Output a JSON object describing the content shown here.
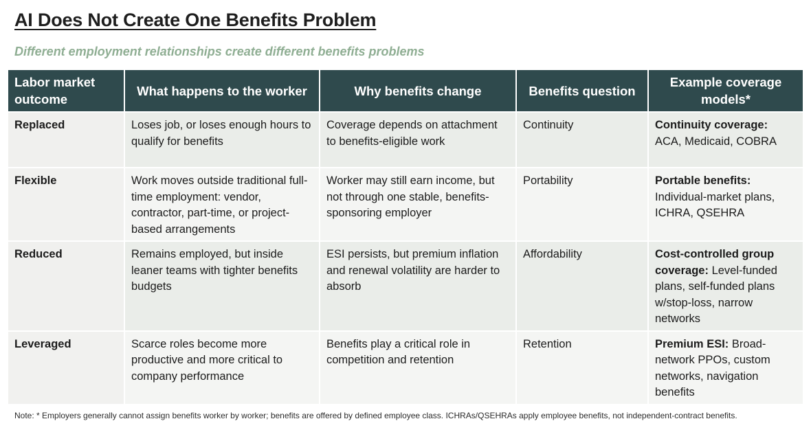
{
  "title": "AI Does Not Create One Benefits Problem",
  "subtitle": "Different employment relationships create different benefits problems",
  "table": {
    "headers": [
      "Labor market outcome",
      "What happens to the worker",
      "Why benefits change",
      "Benefits question",
      "Example coverage models*"
    ],
    "rows": [
      {
        "outcome": "Replaced",
        "worker": "Loses job, or loses enough hours to qualify for benefits",
        "why": "Coverage depends on attachment to benefits-eligible work",
        "question": "Continuity",
        "model_bold": "Continuity coverage:",
        "model_rest": "ACA, Medicaid, COBRA"
      },
      {
        "outcome": "Flexible",
        "worker": "Work moves outside traditional full-time employment: vendor, contractor, part-time, or project-based arrangements",
        "why": "Worker may still earn income, but not through one stable, benefits-sponsoring employer",
        "question": "Portability",
        "model_bold": "Portable benefits:",
        "model_rest": "Individual-market plans, ICHRA, QSEHRA"
      },
      {
        "outcome": "Reduced",
        "worker": "Remains employed, but inside leaner teams with tighter benefits budgets",
        "why": "ESI persists, but premium inflation and renewal volatility are harder to absorb",
        "question": "Affordability",
        "model_bold": "Cost-controlled group coverage:",
        "model_rest": "Level-funded plans, self-funded plans w/stop-loss, narrow networks"
      },
      {
        "outcome": "Leveraged",
        "worker": "Scarce roles become more productive and more critical to company performance",
        "why": "Benefits play a critical role in competition and retention",
        "question": "Retention",
        "model_bold": "Premium ESI:",
        "model_rest": "Broad-network PPOs, custom networks, navigation benefits"
      }
    ]
  },
  "note": "Note: * Employers generally cannot assign benefits worker by worker; benefits are offered by defined employee class. ICHRAs/QSEHRAs apply employee benefits, not independent-contract benefits."
}
